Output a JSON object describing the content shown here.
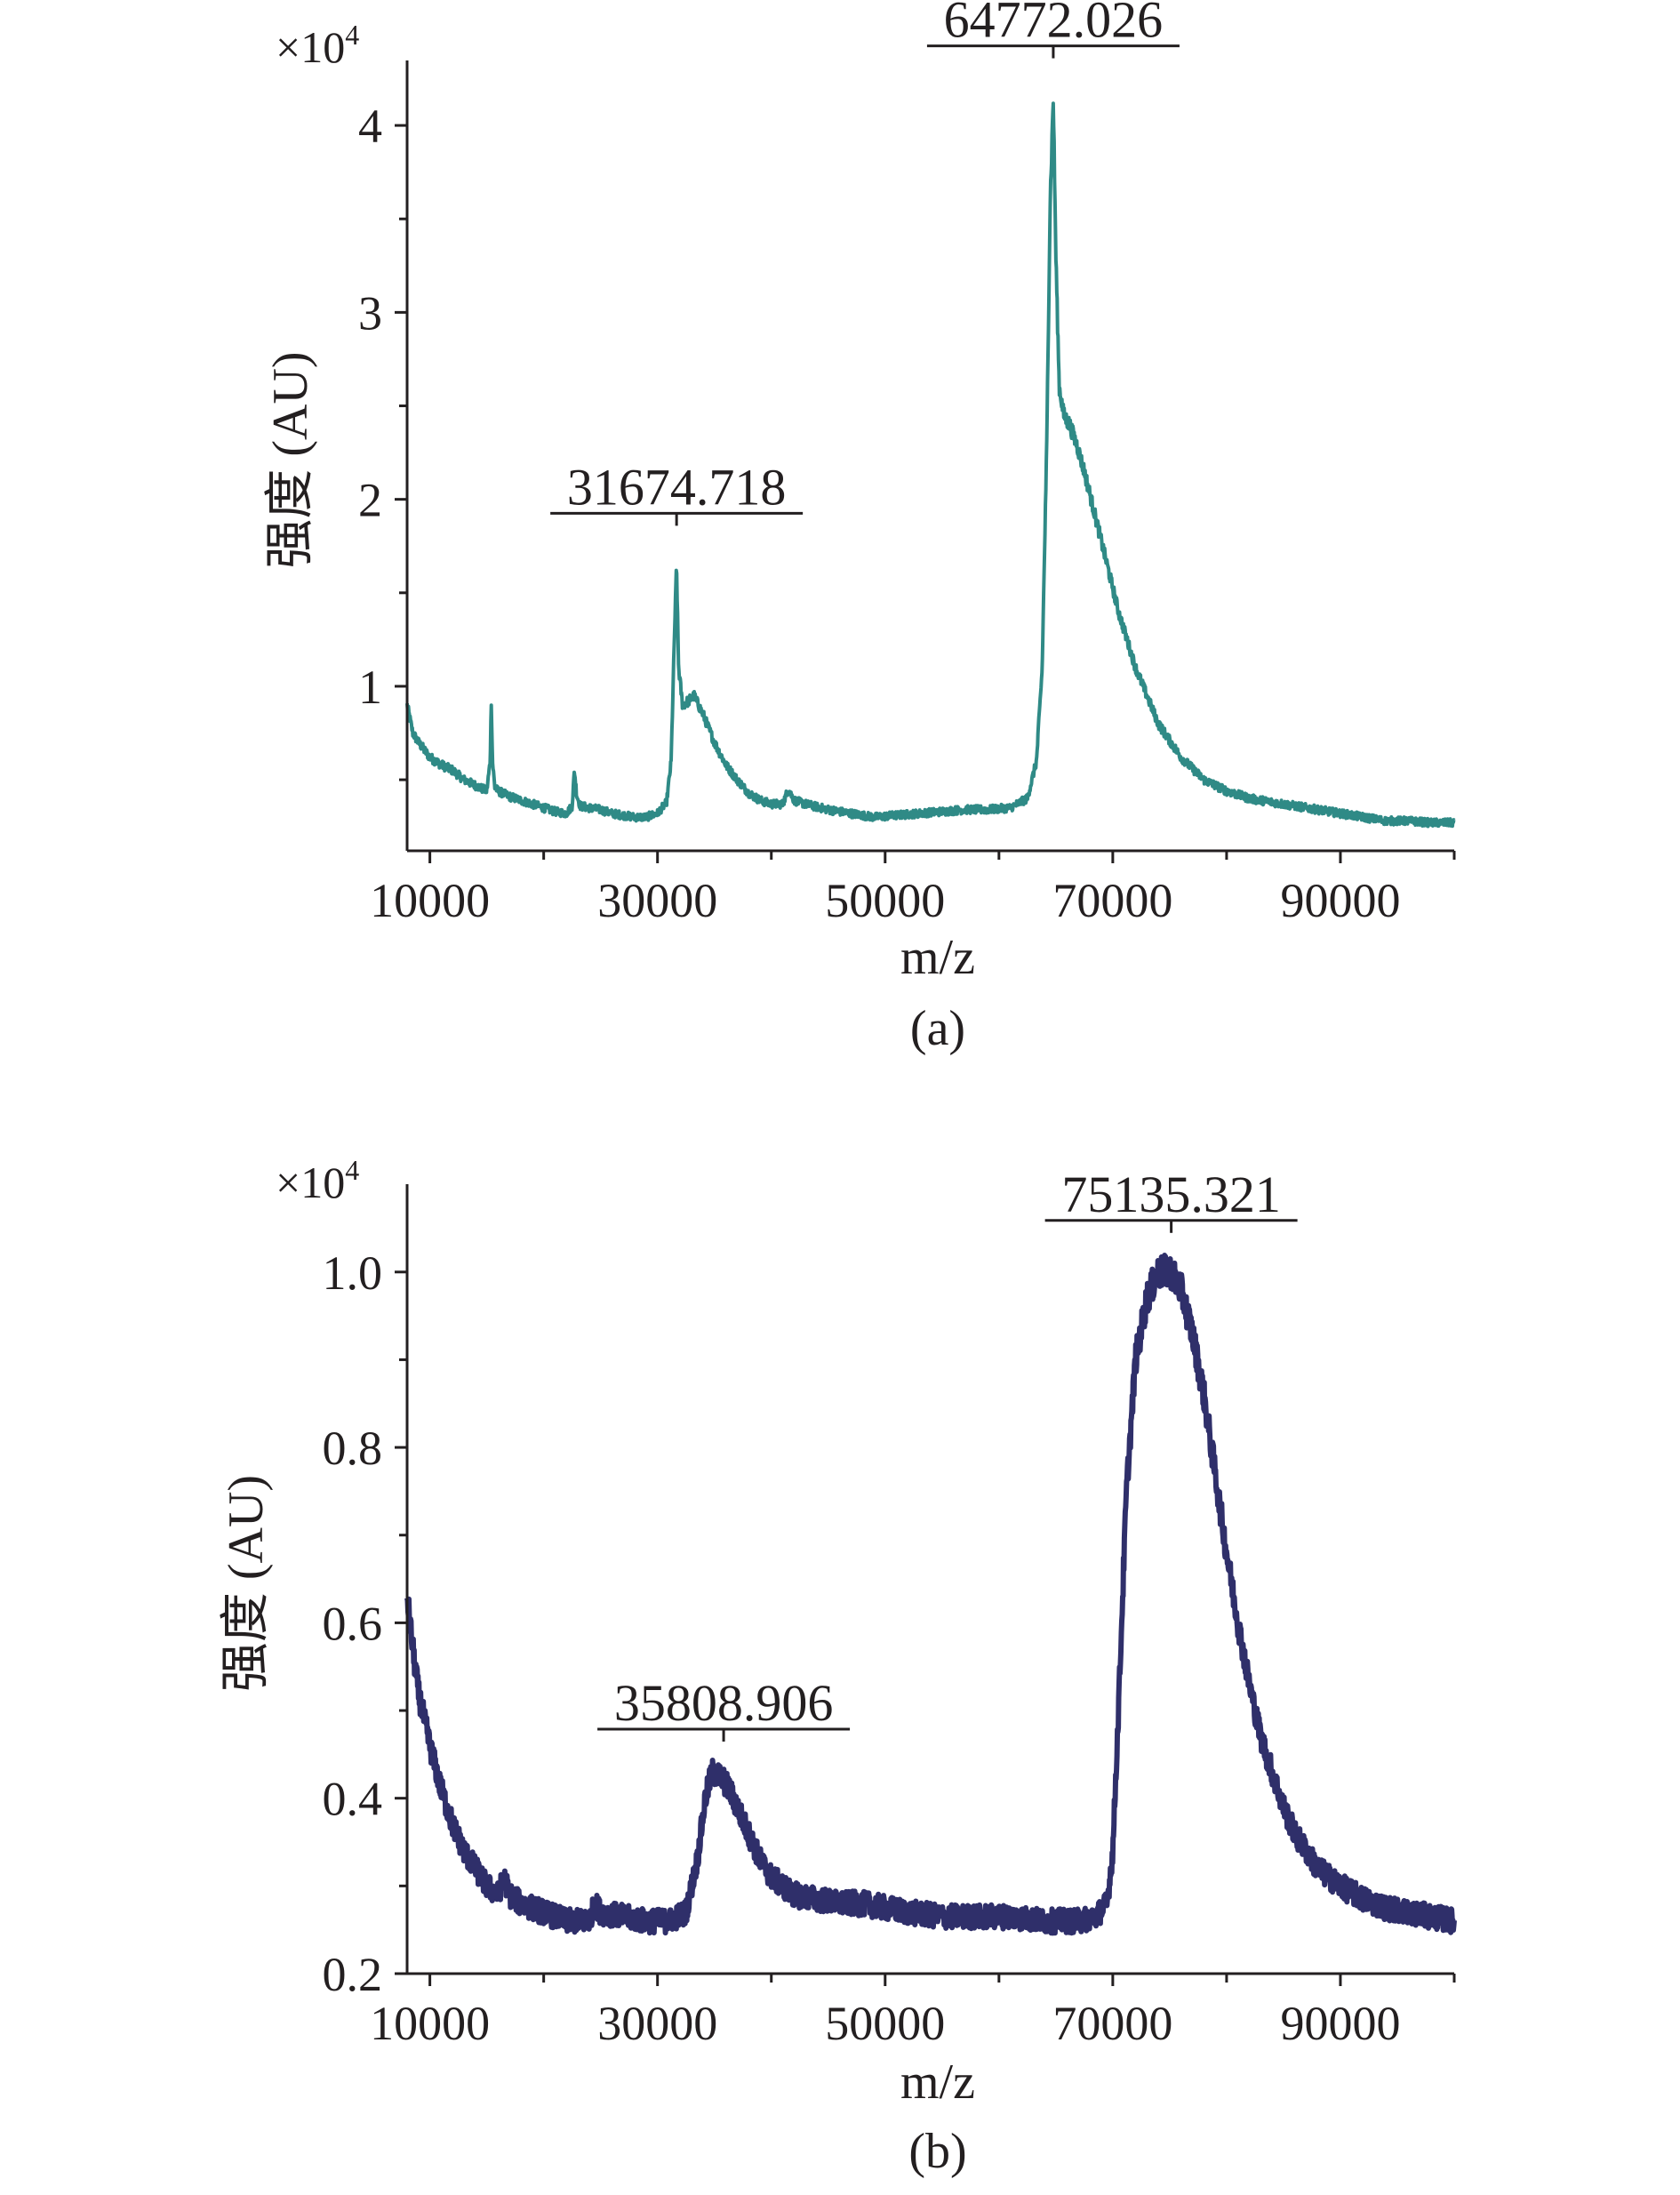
{
  "chart_data": [
    {
      "type": "line",
      "panel_label": "(a)",
      "xlabel": "m/z",
      "ylabel": "强度 (AU)",
      "multiplier": "×10",
      "multiplier_exp": "4",
      "xlim": [
        8000,
        100000
      ],
      "ylim": [
        0.12,
        4.3
      ],
      "xticks": [
        10000,
        30000,
        50000,
        70000,
        90000
      ],
      "xtick_labels": [
        "10000",
        "30000",
        "50000",
        "70000",
        "90000"
      ],
      "xminor": [
        20000,
        40000,
        60000,
        80000,
        100000
      ],
      "yticks": [
        1,
        2,
        3,
        4
      ],
      "ytick_labels": [
        "1",
        "2",
        "3",
        "4"
      ],
      "yminor": [
        0.5,
        1.5,
        2.5,
        3.5
      ],
      "color": "#2f8a86",
      "noise": 0.018,
      "series": [
        {
          "x": [
            8000,
            8500,
            9000,
            9500,
            10000,
            11000,
            12000,
            13000,
            14000,
            15000,
            15300,
            15400,
            15500,
            15700,
            16000,
            17000,
            18000,
            19000,
            20000,
            21000,
            22000,
            22500,
            22700,
            22900,
            23200,
            24000,
            25000,
            26000,
            27000,
            28000,
            29000,
            30000,
            30800,
            31200,
            31500,
            31675,
            31850,
            32200,
            32700,
            33200,
            34000,
            35000,
            36000,
            37000,
            38000,
            39000,
            40000,
            41000,
            41500,
            42000,
            43000,
            45000,
            47000,
            49000,
            51000,
            53000,
            55000,
            57000,
            59000,
            61000,
            62500,
            63300,
            63800,
            64200,
            64500,
            64772,
            65000,
            65300,
            65700,
            66200,
            66800,
            67500,
            68500,
            69500,
            70500,
            72000,
            74000,
            76000,
            78000,
            80000,
            82000,
            84000,
            86000,
            88000,
            90000,
            92000,
            94000,
            96000,
            98000,
            100000
          ],
          "y": [
            0.9,
            0.75,
            0.7,
            0.66,
            0.62,
            0.58,
            0.55,
            0.5,
            0.47,
            0.44,
            0.6,
            0.93,
            0.6,
            0.46,
            0.44,
            0.41,
            0.39,
            0.37,
            0.35,
            0.33,
            0.32,
            0.36,
            0.55,
            0.42,
            0.36,
            0.35,
            0.34,
            0.32,
            0.31,
            0.3,
            0.3,
            0.32,
            0.38,
            0.6,
            1.3,
            1.65,
            1.1,
            0.9,
            0.92,
            0.95,
            0.85,
            0.7,
            0.58,
            0.5,
            0.43,
            0.39,
            0.37,
            0.37,
            0.45,
            0.39,
            0.37,
            0.34,
            0.32,
            0.3,
            0.31,
            0.32,
            0.33,
            0.34,
            0.34,
            0.35,
            0.4,
            0.6,
            1.1,
            2.3,
            3.6,
            4.15,
            3.3,
            2.6,
            2.45,
            2.4,
            2.3,
            2.15,
            1.9,
            1.65,
            1.4,
            1.1,
            0.8,
            0.62,
            0.5,
            0.44,
            0.4,
            0.38,
            0.36,
            0.34,
            0.32,
            0.3,
            0.28,
            0.28,
            0.27,
            0.27
          ]
        }
      ],
      "annotations": [
        {
          "text": "31674.718",
          "x": 31674.718
        },
        {
          "text": "64772.026",
          "x": 64772.026
        }
      ]
    },
    {
      "type": "line",
      "panel_label": "(b)",
      "xlabel": "m/z",
      "ylabel": "强度 (AU)",
      "multiplier": "×10",
      "multiplier_exp": "4",
      "xlim": [
        8000,
        100000
      ],
      "ylim": [
        0.2,
        1.09
      ],
      "xticks": [
        10000,
        30000,
        50000,
        70000,
        90000
      ],
      "xtick_labels": [
        "10000",
        "30000",
        "50000",
        "70000",
        "90000"
      ],
      "xminor": [
        20000,
        40000,
        60000,
        80000,
        100000
      ],
      "yticks": [
        0.2,
        0.4,
        0.6,
        0.8,
        1.0
      ],
      "ytick_labels": [
        "0.2",
        "0.4",
        "0.6",
        "0.8",
        "1.0"
      ],
      "yminor": [
        0.3,
        0.5,
        0.7,
        0.9
      ],
      "color": "#2f2f6a",
      "noise": 0.012,
      "series": [
        {
          "x": [
            8000,
            8500,
            9000,
            10000,
            11000,
            12000,
            13000,
            14000,
            15000,
            16000,
            16500,
            17000,
            18000,
            20000,
            22000,
            24000,
            24500,
            25000,
            27000,
            29000,
            31000,
            32500,
            33500,
            34200,
            34800,
            35400,
            35809,
            36300,
            37000,
            38000,
            39000,
            40000,
            41000,
            42000,
            44000,
            46000,
            48000,
            50000,
            52000,
            55000,
            58000,
            61000,
            64000,
            67000,
            68500,
            69500,
            70000,
            70500,
            71200,
            72000,
            73000,
            74000,
            75135,
            76000,
            77000,
            78000,
            79000,
            80000,
            81000,
            82000,
            83000,
            84000,
            85000,
            86000,
            87000,
            88000,
            90000,
            92000,
            94000,
            96000,
            98000,
            100000
          ],
          "y": [
            0.63,
            0.57,
            0.52,
            0.46,
            0.41,
            0.37,
            0.34,
            0.32,
            0.3,
            0.29,
            0.31,
            0.29,
            0.28,
            0.27,
            0.26,
            0.26,
            0.28,
            0.27,
            0.265,
            0.26,
            0.26,
            0.27,
            0.33,
            0.4,
            0.43,
            0.425,
            0.42,
            0.41,
            0.39,
            0.36,
            0.33,
            0.31,
            0.3,
            0.29,
            0.285,
            0.28,
            0.28,
            0.275,
            0.27,
            0.265,
            0.265,
            0.265,
            0.26,
            0.26,
            0.265,
            0.28,
            0.34,
            0.5,
            0.75,
            0.9,
            0.97,
            1.0,
            1.0,
            0.98,
            0.93,
            0.86,
            0.77,
            0.68,
            0.6,
            0.53,
            0.47,
            0.43,
            0.39,
            0.36,
            0.34,
            0.32,
            0.3,
            0.285,
            0.275,
            0.27,
            0.265,
            0.26
          ]
        }
      ],
      "annotations": [
        {
          "text": "35808.906",
          "x": 35808.906
        },
        {
          "text": "75135.321",
          "x": 75135.321
        }
      ]
    }
  ]
}
